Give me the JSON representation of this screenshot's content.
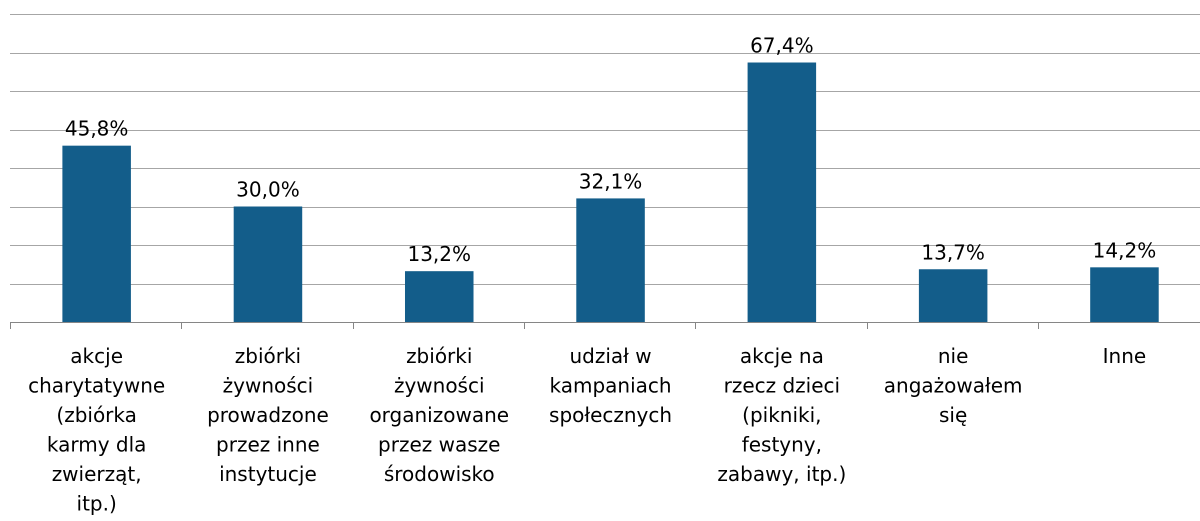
{
  "chart_data": {
    "type": "bar",
    "categories": [
      "akcje\ncharytatywne\n(zbiórka\nkarmy dla\nzwierząt,\nitp.)",
      "zbiórki\nżywności\nprowadzone\nprzez inne\ninstytucje",
      "zbiórki\nżywności\norganizowane\nprzez wasze\nśrodowisko",
      "udział w\nkampaniach\nspołecznych",
      "akcje na\nrzecz dzieci\n(pikniki,\nfestyny,\nzabawy, itp.)",
      "nie\nangażowałem\nsię",
      "Inne"
    ],
    "values": [
      45.8,
      30.0,
      13.2,
      32.1,
      67.4,
      13.7,
      14.2
    ],
    "value_labels": [
      "45,8%",
      "30,0%",
      "13,2%",
      "32,1%",
      "67,4%",
      "13,7%",
      "14,2%"
    ],
    "color": "#135d8a",
    "ylim": [
      0,
      80
    ],
    "yticks": [
      0,
      10,
      20,
      30,
      40,
      50,
      60,
      70,
      80
    ],
    "grid": true
  }
}
